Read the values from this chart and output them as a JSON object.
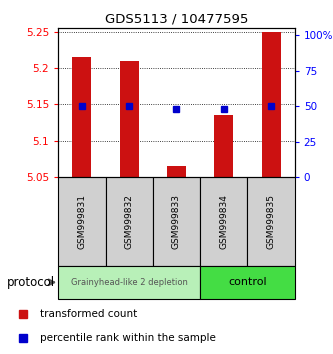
{
  "title": "GDS5113 / 10477595",
  "samples": [
    "GSM999831",
    "GSM999832",
    "GSM999833",
    "GSM999834",
    "GSM999835"
  ],
  "red_values": [
    5.215,
    5.21,
    5.065,
    5.135,
    5.25
  ],
  "blue_values": [
    50,
    50,
    48,
    48,
    50
  ],
  "ylim_left": [
    5.05,
    5.255
  ],
  "ylim_right": [
    0,
    105
  ],
  "yticks_left": [
    5.05,
    5.1,
    5.15,
    5.2,
    5.25
  ],
  "ytick_labels_left": [
    "5.05",
    "5.1",
    "5.15",
    "5.2",
    "5.25"
  ],
  "yticks_right": [
    0,
    25,
    50,
    75,
    100
  ],
  "ytick_labels_right": [
    "0",
    "25",
    "50",
    "75",
    "100%"
  ],
  "group1_label": "Grainyhead-like 2 depletion",
  "group2_label": "control",
  "group1_indices": [
    0,
    1,
    2
  ],
  "group2_indices": [
    3,
    4
  ],
  "group1_color": "#b8f0b8",
  "group2_color": "#44dd44",
  "bar_color": "#cc1111",
  "dot_color": "#0000cc",
  "bar_width": 0.4,
  "protocol_label": "protocol",
  "legend_red": "transformed count",
  "legend_blue": "percentile rank within the sample",
  "base_value": 5.05
}
